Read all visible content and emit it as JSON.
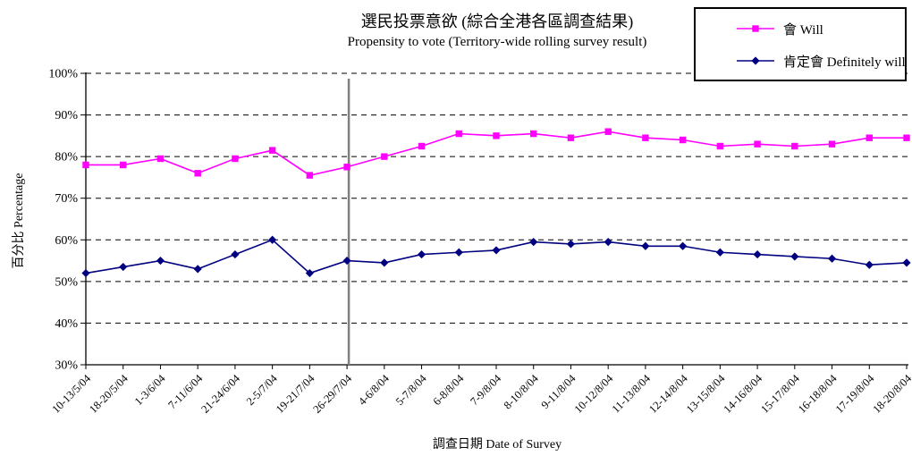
{
  "title": {
    "zh": "選民投票意欲 (綜合全港各區調查結果)",
    "en": "Propensity to vote (Territory-wide rolling survey result)"
  },
  "legend": {
    "items": [
      {
        "label": "會 Will",
        "color": "#FF00FF",
        "marker": "square"
      },
      {
        "label": "肯定會 Definitely will",
        "color": "#000080",
        "marker": "diamond"
      }
    ]
  },
  "chart_data": {
    "type": "line",
    "title": "選民投票意欲 (綜合全港各區調查結果)",
    "subtitle": "Propensity to vote (Territory-wide rolling survey result)",
    "xlabel": "調查日期 Date of Survey",
    "ylabel": "百分比 Percentage",
    "ylim": [
      30,
      100
    ],
    "ytick_step": 10,
    "ytick_format": "percent",
    "grid": "horizontal-dashed",
    "legend_position": "top-right",
    "categories": [
      "10-13/5/04",
      "18-20/5/04",
      "1-3/6/04",
      "7-11/6/04",
      "21-24/6/04",
      "2-5/7/04",
      "19-21/7/04",
      "26-29/7/04",
      "4-6/8/04",
      "5-7/8/04",
      "6-8/8/04",
      "7-9/8/04",
      "8-10/8/04",
      "9-11/8/04",
      "10-12/8/04",
      "11-13/8/04",
      "12-14/8/04",
      "13-15/8/04",
      "14-16/8/04",
      "15-17/8/04",
      "16-18/8/04",
      "17-19/8/04",
      "18-20/8/04"
    ],
    "series": [
      {
        "name": "會 Will",
        "color": "#FF00FF",
        "marker": "square",
        "values": [
          78,
          78,
          79.5,
          76,
          79.5,
          81.5,
          75.5,
          77.5,
          80,
          82.5,
          85.5,
          85,
          85.5,
          84.5,
          86,
          84.5,
          84,
          82.5,
          83,
          82.5,
          83,
          84.5,
          84.5
        ]
      },
      {
        "name": "肯定會 Definitely will",
        "color": "#000080",
        "marker": "diamond",
        "values": [
          52,
          53.5,
          55,
          53,
          56.5,
          60,
          52,
          55,
          54.5,
          56.5,
          57,
          57.5,
          59.5,
          59,
          59.5,
          58.5,
          58.5,
          57,
          56.5,
          56,
          55.5,
          54,
          54.5
        ]
      }
    ],
    "annotations": [
      {
        "type": "vline",
        "at_category": "26-29/7/04",
        "color": "#808080"
      }
    ]
  }
}
